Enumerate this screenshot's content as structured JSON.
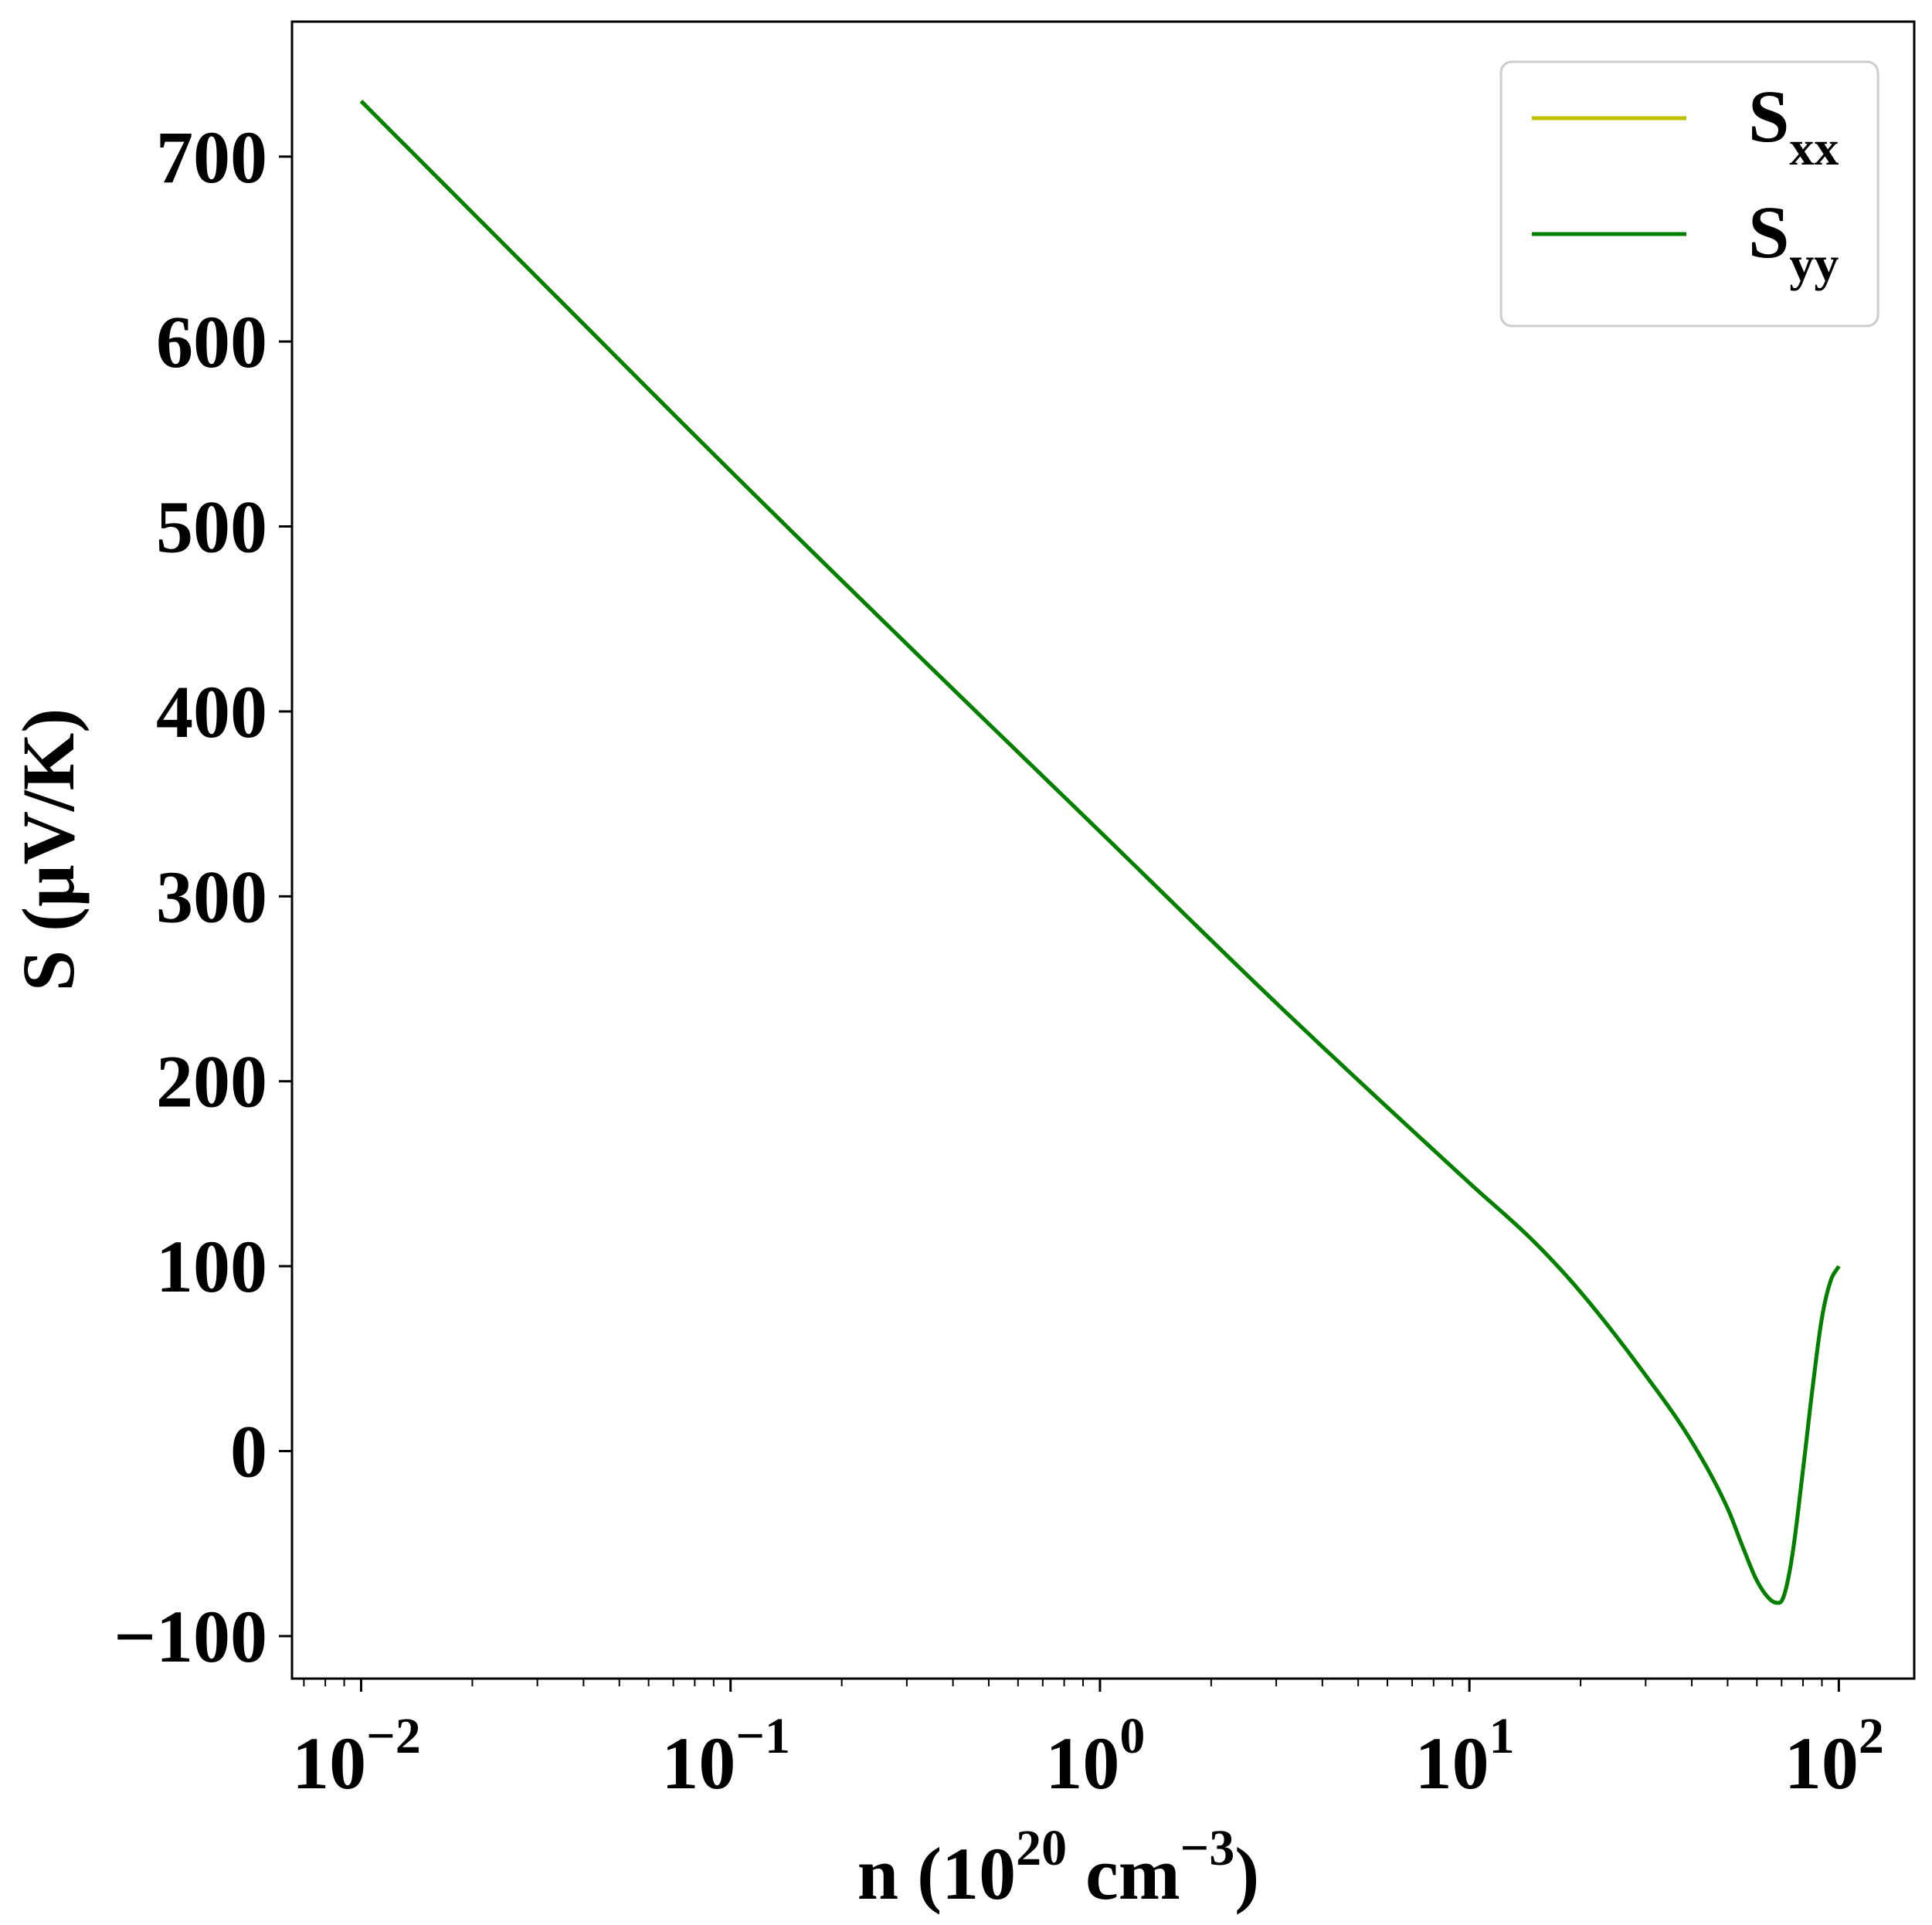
{
  "chart_data": {
    "type": "line",
    "xscale": "log",
    "xlim": [
      0.0065,
      160
    ],
    "ylim": [
      -123,
      773
    ],
    "grid": false,
    "legend_position": "top-right",
    "xlabel": {
      "pre": "n (10",
      "sup1": "20",
      "mid": " cm",
      "sup2": "−3",
      "post": ")"
    },
    "ylabel": "S (μV/K)",
    "xticks": [
      {
        "value": 0.01,
        "base": "10",
        "exp": "−2"
      },
      {
        "value": 0.1,
        "base": "10",
        "exp": "−1"
      },
      {
        "value": 1,
        "base": "10",
        "exp": "0"
      },
      {
        "value": 10,
        "base": "10",
        "exp": "1"
      },
      {
        "value": 100,
        "base": "10",
        "exp": "2"
      }
    ],
    "yticks": [
      {
        "value": -100,
        "label": "−100"
      },
      {
        "value": 0,
        "label": "0"
      },
      {
        "value": 100,
        "label": "100"
      },
      {
        "value": 200,
        "label": "200"
      },
      {
        "value": 300,
        "label": "300"
      },
      {
        "value": 400,
        "label": "400"
      },
      {
        "value": 500,
        "label": "500"
      },
      {
        "value": 600,
        "label": "600"
      },
      {
        "value": 700,
        "label": "700"
      }
    ],
    "series": [
      {
        "name": "Sxx",
        "label_main": "S",
        "label_sub": "xx",
        "color": "#bfbf00",
        "x": [
          0.01,
          0.0316,
          0.1,
          0.316,
          1,
          3.16,
          10,
          15,
          20,
          30,
          40,
          50,
          55,
          60,
          65,
          68,
          70,
          72,
          75,
          80,
          85,
          90,
          95,
          100
        ],
        "y": [
          730,
          630,
          530,
          432,
          335,
          238,
          145,
          113,
          86,
          41,
          5,
          -31,
          -52,
          -70,
          -80,
          -82,
          -81,
          -74,
          -55,
          -10,
          35,
          72,
          92,
          100
        ]
      },
      {
        "name": "Syy",
        "label_main": "S",
        "label_sub": "yy",
        "color": "#008000",
        "x": [
          0.01,
          0.0316,
          0.1,
          0.316,
          1,
          3.16,
          10,
          15,
          20,
          30,
          40,
          50,
          55,
          60,
          65,
          68,
          70,
          72,
          75,
          80,
          85,
          90,
          95,
          100
        ],
        "y": [
          730,
          630,
          530,
          432,
          335,
          238,
          145,
          113,
          86,
          41,
          5,
          -31,
          -52,
          -70,
          -80,
          -82,
          -81,
          -74,
          -55,
          -10,
          35,
          72,
          92,
          100
        ]
      }
    ]
  }
}
